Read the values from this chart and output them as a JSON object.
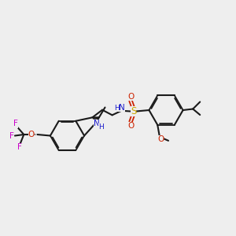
{
  "bg_color": "#eeeeee",
  "bond_color": "#1a1a1a",
  "N_color": "#1a1acc",
  "O_color": "#cc2200",
  "F_color": "#cc00cc",
  "S_color": "#ccaa00",
  "lw": 1.5,
  "lw_thin": 1.3,
  "fig_w": 3.0,
  "fig_h": 3.0,
  "dpi": 100,
  "xlim": [
    0,
    10
  ],
  "ylim": [
    0,
    10
  ]
}
